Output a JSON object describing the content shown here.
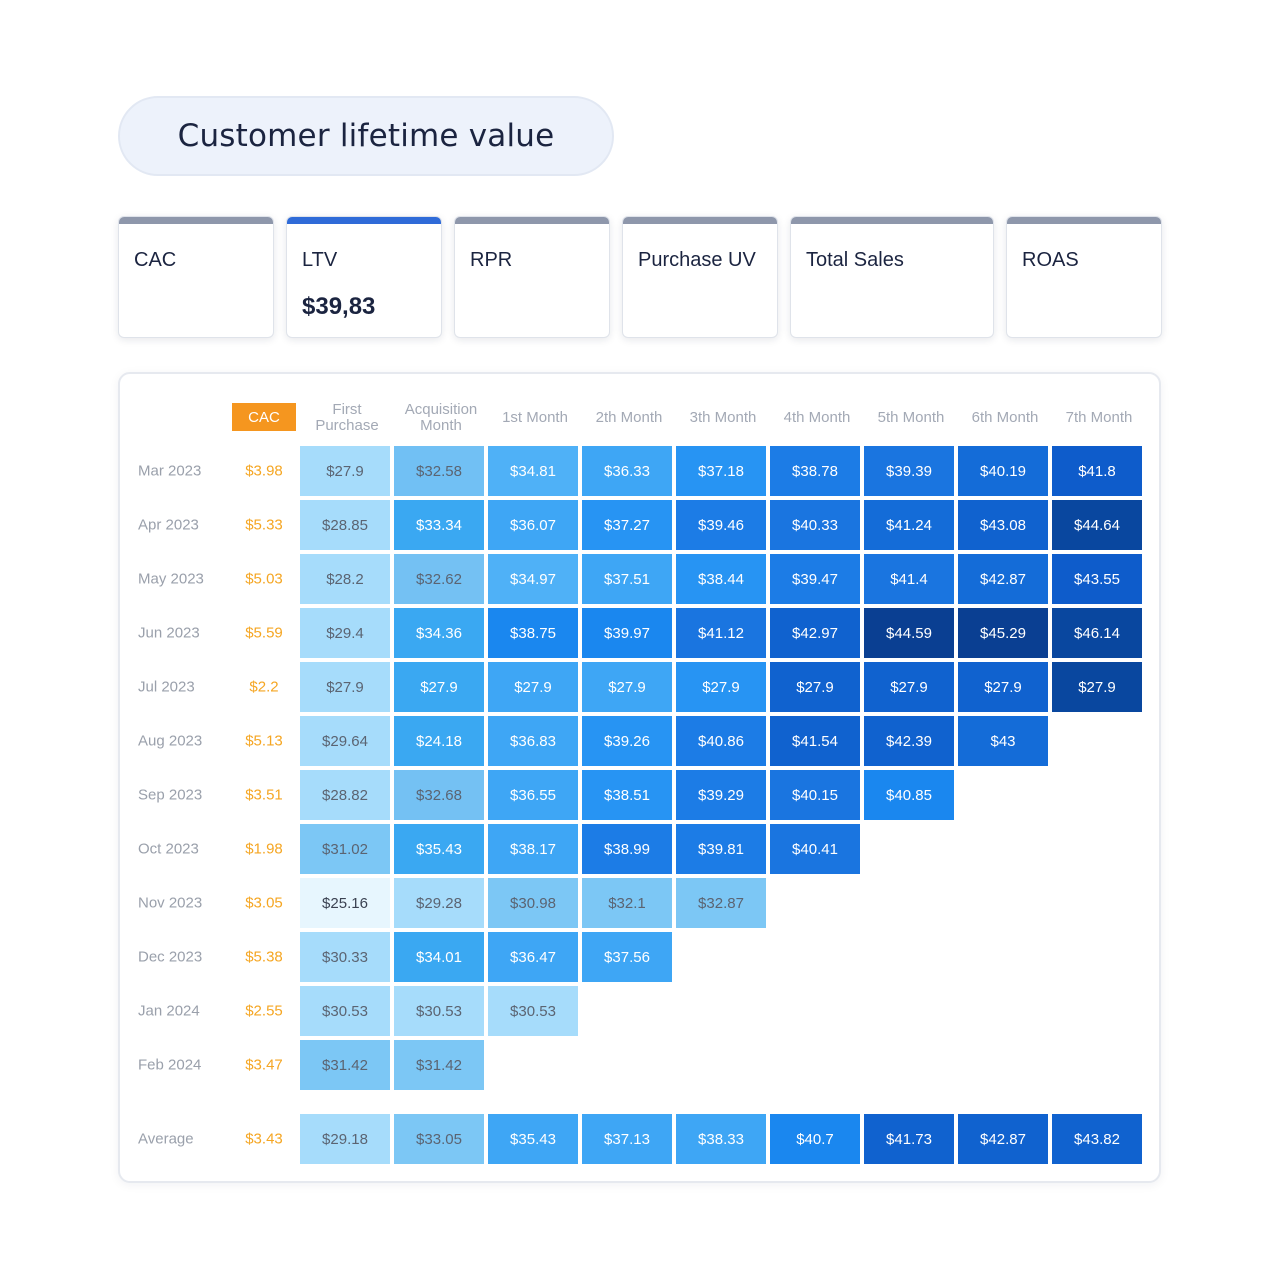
{
  "title": "Customer lifetime value",
  "tabs": [
    {
      "label": "CAC",
      "value": ""
    },
    {
      "label": "LTV",
      "value": "$39,83",
      "active": true
    },
    {
      "label": "RPR",
      "value": ""
    },
    {
      "label": "Purchase UV",
      "value": ""
    },
    {
      "label": "Total Sales",
      "value": ""
    },
    {
      "label": "ROAS",
      "value": ""
    }
  ],
  "chart_data": {
    "type": "heatmap",
    "cac_header": "CAC",
    "columns": [
      "First\nPurchase",
      "Acquisition\nMonth",
      "1st Month",
      "2th Month",
      "3th Month",
      "4th Month",
      "5th Month",
      "6th Month",
      "7th Month"
    ],
    "rows": [
      {
        "label": "Mar 2023",
        "cac": "$3.98",
        "values": [
          "$27.9",
          "$32.58",
          "$34.81",
          "$36.33",
          "$37.18",
          "$38.78",
          "$39.39",
          "$40.19",
          "$41.8"
        ]
      },
      {
        "label": "Apr 2023",
        "cac": "$5.33",
        "values": [
          "$28.85",
          "$33.34",
          "$36.07",
          "$37.27",
          "$39.46",
          "$40.33",
          "$41.24",
          "$43.08",
          "$44.64"
        ]
      },
      {
        "label": "May 2023",
        "cac": "$5.03",
        "values": [
          "$28.2",
          "$32.62",
          "$34.97",
          "$37.51",
          "$38.44",
          "$39.47",
          "$41.4",
          "$42.87",
          "$43.55"
        ]
      },
      {
        "label": "Jun 2023",
        "cac": "$5.59",
        "values": [
          "$29.4",
          "$34.36",
          "$38.75",
          "$39.97",
          "$41.12",
          "$42.97",
          "$44.59",
          "$45.29",
          "$46.14"
        ]
      },
      {
        "label": "Jul 2023",
        "cac": "$2.2",
        "values": [
          "$27.9",
          "$27.9",
          "$27.9",
          "$27.9",
          "$27.9",
          "$27.9",
          "$27.9",
          "$27.9",
          "$27.9"
        ]
      },
      {
        "label": "Aug 2023",
        "cac": "$5.13",
        "values": [
          "$29.64",
          "$24.18",
          "$36.83",
          "$39.26",
          "$40.86",
          "$41.54",
          "$42.39",
          "$43"
        ]
      },
      {
        "label": "Sep 2023",
        "cac": "$3.51",
        "values": [
          "$28.82",
          "$32.68",
          "$36.55",
          "$38.51",
          "$39.29",
          "$40.15",
          "$40.85"
        ]
      },
      {
        "label": "Oct 2023",
        "cac": "$1.98",
        "values": [
          "$31.02",
          "$35.43",
          "$38.17",
          "$38.99",
          "$39.81",
          "$40.41"
        ]
      },
      {
        "label": "Nov 2023",
        "cac": "$3.05",
        "values": [
          "$25.16",
          "$29.28",
          "$30.98",
          "$32.1",
          "$32.87"
        ]
      },
      {
        "label": "Dec 2023",
        "cac": "$5.38",
        "values": [
          "$30.33",
          "$34.01",
          "$36.47",
          "$37.56"
        ]
      },
      {
        "label": "Jan 2024",
        "cac": "$2.55",
        "values": [
          "$30.53",
          "$30.53",
          "$30.53"
        ]
      },
      {
        "label": "Feb 2024",
        "cac": "$3.47",
        "values": [
          "$31.42",
          "$31.42"
        ]
      }
    ],
    "average": {
      "label": "Average",
      "cac": "$3.43",
      "values": [
        "$29.18",
        "$33.05",
        "$35.43",
        "$37.13",
        "$38.33",
        "$40.7",
        "$41.73",
        "$42.87",
        "$43.82"
      ]
    },
    "cell_colors": [
      [
        "#a6dcfb",
        "#71c0f4",
        "#4fb1f7",
        "#3ea6f5",
        "#2794f3",
        "#1c7ce6",
        "#1a75e0",
        "#146cd8",
        "#0e5ccb"
      ],
      [
        "#a6dcfb",
        "#3aa8f2",
        "#3ea6f5",
        "#2794f3",
        "#1c7ce6",
        "#1a75e0",
        "#146cd8",
        "#1062cf",
        "#09479f"
      ],
      [
        "#a6dcfb",
        "#74c1f3",
        "#4fb1f7",
        "#3ea6f5",
        "#2794f3",
        "#1c7ce6",
        "#1a75e0",
        "#146cd8",
        "#0e5ccb"
      ],
      [
        "#a6dcfb",
        "#3aa8f2",
        "#1a87ef",
        "#1a87ef",
        "#1a75e0",
        "#1062cf",
        "#0a3f92",
        "#0a3f92",
        "#09479f"
      ],
      [
        "#a6dcfb",
        "#3aa8f2",
        "#3ea6f5",
        "#3ea6f5",
        "#2794f3",
        "#1062cf",
        "#1062cf",
        "#1062cf",
        "#09479f"
      ],
      [
        "#a6dcfb",
        "#3aa8f2",
        "#3ea6f5",
        "#2794f3",
        "#1c7ce6",
        "#1062cf",
        "#1062cf",
        "#146cd8"
      ],
      [
        "#a6dcfb",
        "#74c1f3",
        "#3ea6f5",
        "#2794f3",
        "#1c7ce6",
        "#1a75e0",
        "#1a87ef"
      ],
      [
        "#7cc7f5",
        "#3aa8f2",
        "#3ea6f5",
        "#1c7ce6",
        "#1c7ce6",
        "#1a75e0"
      ],
      [
        "#e7f6fe",
        "#a6dcfb",
        "#7cc7f5",
        "#7cc7f5",
        "#7cc7f5"
      ],
      [
        "#a6dcfb",
        "#3aa8f2",
        "#3ea6f5",
        "#3ea6f5"
      ],
      [
        "#a6dcfb",
        "#a6dcfb",
        "#a6dcfb"
      ],
      [
        "#7cc7f5",
        "#7cc7f5"
      ]
    ],
    "average_colors": [
      "#a6dcfb",
      "#7cc7f5",
      "#3ea6f5",
      "#3ea6f5",
      "#3ea6f5",
      "#1a87ef",
      "#1062cf",
      "#1062cf",
      "#1062cf"
    ]
  }
}
